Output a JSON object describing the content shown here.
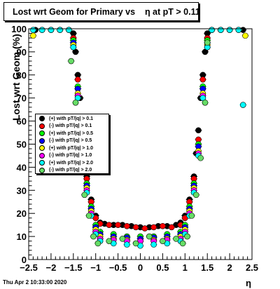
{
  "title": "Lost wrt Geom for Primary vs    η at pT > 0.11",
  "footer": "Thu Apr  2 10:33:00 2020",
  "chart_data": {
    "type": "scatter",
    "xlabel": "η",
    "ylabel": "Lost wrt Geom (%)",
    "xlim": [
      -2.5,
      2.5
    ],
    "ylim": [
      0,
      100
    ],
    "x_ticks": [
      "−2.5",
      "−2",
      "−1.5",
      "−1",
      "−0.5",
      "0",
      "0.5",
      "1",
      "1.5",
      "2",
      "2.5"
    ],
    "y_ticks": [
      "0",
      "10",
      "20",
      "30",
      "40",
      "50",
      "60",
      "70",
      "80",
      "90",
      "100"
    ],
    "grid": false,
    "legend_position": "left-middle",
    "series": [
      {
        "name": "(+) with pT/|q| > 0.1",
        "color": "#000000",
        "x": [
          -2.35,
          -2.0,
          -1.8,
          -1.6,
          -1.5,
          -1.45,
          -1.4,
          -1.35,
          -1.3,
          -1.25,
          -1.2,
          -1.1,
          -1.0,
          -0.9,
          -0.8,
          -0.6,
          -0.4,
          -0.2,
          0.0,
          0.2,
          0.4,
          0.6,
          0.8,
          0.9,
          1.0,
          1.1,
          1.2,
          1.25,
          1.3,
          1.35,
          1.4,
          1.45,
          1.5,
          1.6,
          1.8,
          2.0,
          2.3
        ],
        "y": [
          99.5,
          99.5,
          99.5,
          99.5,
          98,
          90,
          80,
          70,
          55,
          45,
          36,
          26,
          19,
          16,
          15.5,
          15,
          15,
          14.5,
          14,
          14,
          14.5,
          14.5,
          15,
          16,
          19,
          26,
          36,
          46,
          56,
          70,
          80,
          90,
          98,
          99.5,
          99.5,
          99.5,
          99.5
        ]
      },
      {
        "name": "(-) with pT/|q| > 0.1",
        "color": "#ff0000",
        "x": [
          -1.5,
          -1.4,
          -1.3,
          -1.2,
          -1.1,
          -1.0,
          -0.9,
          -0.7,
          -0.5,
          -0.3,
          -0.1,
          0.1,
          0.3,
          0.5,
          0.7,
          0.9,
          1.0,
          1.1,
          1.2,
          1.3,
          1.4,
          1.5
        ],
        "y": [
          96,
          78,
          52,
          35,
          25,
          18,
          15.5,
          15,
          15,
          14.5,
          14,
          13.5,
          14,
          14.5,
          14,
          15,
          18,
          25,
          35,
          52,
          78,
          96
        ]
      },
      {
        "name": "(+) with pT/|q| > 0.5",
        "color": "#00ff00",
        "x": [
          -1.5,
          -1.4,
          -1.3,
          -1.2,
          -1.1,
          -1.0,
          -0.9,
          -0.6,
          -0.3,
          0.0,
          0.3,
          0.6,
          0.9,
          1.0,
          1.1,
          1.2,
          1.3,
          1.4,
          1.5
        ],
        "y": [
          95,
          75,
          50,
          33,
          23,
          15,
          12,
          11,
          10,
          10,
          10,
          11,
          12,
          15,
          23,
          33,
          50,
          75,
          95
        ]
      },
      {
        "name": "(-) with pT/|q| > 0.5",
        "color": "#0000ff",
        "x": [
          -1.5,
          -1.4,
          -1.3,
          -1.2,
          -1.1,
          -1.0,
          -0.9,
          -0.6,
          -0.3,
          0.0,
          0.3,
          0.6,
          0.9,
          1.0,
          1.1,
          1.2,
          1.3,
          1.4,
          1.5
        ],
        "y": [
          94,
          74,
          49,
          32,
          22,
          14,
          11,
          10,
          9.5,
          9,
          9.5,
          10,
          11,
          14,
          22,
          32,
          49,
          74,
          94
        ]
      },
      {
        "name": "(+) with pT/|q| > 1.0",
        "color": "#ffff00",
        "x": [
          -2.4,
          -2.2,
          -2.0,
          -1.8,
          -1.6,
          -1.5,
          -1.4,
          -1.3,
          -1.2,
          -1.1,
          -1.0,
          -0.9,
          -0.6,
          -0.3,
          0.0,
          0.3,
          0.6,
          0.9,
          1.0,
          1.1,
          1.2,
          1.3,
          1.4,
          1.5,
          1.6,
          1.8,
          2.0,
          2.2,
          2.35
        ],
        "y": [
          97,
          99.5,
          99.5,
          99.5,
          99.5,
          93,
          72,
          47,
          31,
          21,
          13,
          10,
          9,
          8.5,
          8,
          8.5,
          9,
          10,
          13,
          21,
          31,
          47,
          72,
          93,
          99.5,
          99.5,
          99.5,
          99.5,
          97
        ]
      },
      {
        "name": "(-) with pT/|q| > 1.0",
        "color": "#ff00ff",
        "x": [
          -1.5,
          -1.4,
          -1.3,
          -1.2,
          -1.1,
          -1.0,
          -0.9,
          -0.6,
          -0.3,
          0.0,
          0.3,
          0.6,
          0.9,
          1.0,
          1.1,
          1.2,
          1.3,
          1.4,
          1.5
        ],
        "y": [
          92,
          71,
          46,
          30,
          20,
          12,
          9,
          8.5,
          8,
          8,
          8,
          8.5,
          9,
          12,
          20,
          30,
          46,
          71,
          92
        ]
      },
      {
        "name": "(+) with pT/|q| > 2.0",
        "color": "#00ffff",
        "x": [
          -2.4,
          -2.2,
          -2.0,
          -1.8,
          -1.6,
          -1.5,
          -1.4,
          -1.3,
          -1.2,
          -1.1,
          -1.0,
          -0.9,
          -0.6,
          -0.3,
          0.0,
          0.3,
          0.6,
          0.9,
          1.0,
          1.1,
          1.2,
          1.3,
          1.4,
          1.5,
          1.6,
          1.8,
          2.0,
          2.2,
          2.3
        ],
        "y": [
          99.5,
          99.5,
          99.5,
          99.5,
          99.5,
          92,
          70,
          45,
          29,
          19,
          11,
          8,
          7,
          6.5,
          6,
          6.5,
          7,
          8,
          11,
          19,
          29,
          45,
          70,
          92,
          99.5,
          99.5,
          99.5,
          99.5,
          67
        ]
      },
      {
        "name": "(-) with pT/|q| > 2.0",
        "color": "#66dd66",
        "x": [
          -1.55,
          -1.45,
          -1.35,
          -1.25,
          -1.15,
          -1.05,
          -0.95,
          -0.7,
          -0.4,
          -0.1,
          0.2,
          0.5,
          0.8,
          0.95,
          1.05,
          1.15,
          1.25,
          1.35,
          1.45,
          1.5
        ],
        "y": [
          86,
          68,
          44,
          28,
          19,
          10,
          7,
          8,
          9,
          7,
          10,
          8,
          9,
          7,
          10,
          19,
          28,
          44,
          68,
          94
        ]
      }
    ]
  }
}
